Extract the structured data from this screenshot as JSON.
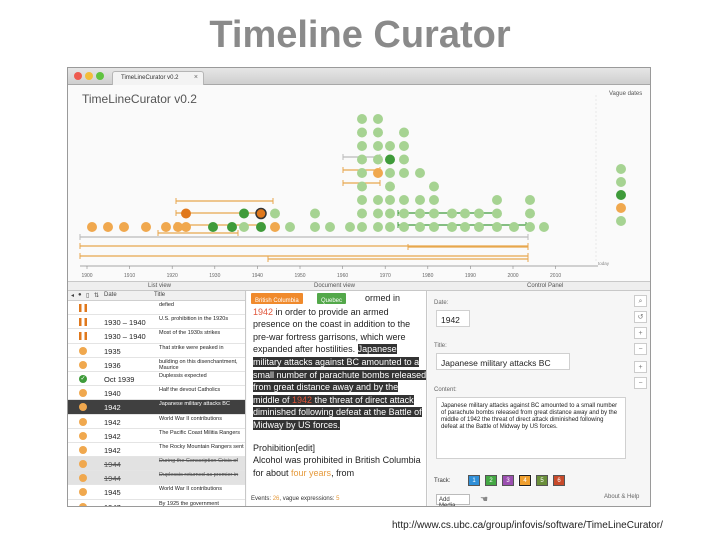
{
  "slide_title": "Timeline Curator",
  "url": "http://www.cs.ubc.ca/group/infovis/software/TimeLineCurator/",
  "window": {
    "tab_title": "TimeLineCurator v0.2",
    "tab_close": "×",
    "app_logo": "TimeLineCurator v0.2"
  },
  "timeline": {
    "vague_dates_label": "Vague dates",
    "axis_ticks": [
      "1900",
      "1910",
      "1920",
      "1930",
      "1940",
      "1950",
      "1960",
      "1970",
      "1980",
      "1990",
      "2000",
      "2010"
    ],
    "axis_end_label": "today",
    "colors": {
      "light_green": "#a6d392",
      "green": "#3f9b3a",
      "orange": "#f0a84e",
      "dark_orange": "#e0781c",
      "bar": "#e8a74d",
      "gray_bar": "#bbbbbb"
    }
  },
  "panel_headers": {
    "list": "List view",
    "document": "Document view",
    "control": "Control Panel"
  },
  "list_view": {
    "toolbar": {
      "date_col": "Date",
      "title_col": "Title"
    },
    "rows": [
      {
        "date": "",
        "title": "defied",
        "icon": "bowtie",
        "style": ""
      },
      {
        "date": "1930 – 1940",
        "title": "U.S. prohibition in the 1920s",
        "icon": "bowtie",
        "style": ""
      },
      {
        "date": "1930 – 1940",
        "title": "Most of the 1930s strikes",
        "icon": "bowtie",
        "style": ""
      },
      {
        "date": "1935",
        "title": "That strike were peaked in",
        "icon": "orange",
        "style": ""
      },
      {
        "date": "1936",
        "title": "building on this disenchantment, Maurice",
        "icon": "orange",
        "style": ""
      },
      {
        "date": "Oct 1939",
        "title": "Duplessis expected",
        "icon": "check",
        "style": ""
      },
      {
        "date": "1940",
        "title": "Half the devout Catholics",
        "icon": "orange",
        "style": ""
      },
      {
        "date": "1942",
        "title": "Japanese military attacks BC",
        "icon": "orange",
        "style": "sel"
      },
      {
        "date": "1942",
        "title": "World War II contributions",
        "icon": "orange",
        "style": ""
      },
      {
        "date": "1942",
        "title": "The Pacific Coast Militia Rangers",
        "icon": "orange",
        "style": ""
      },
      {
        "date": "1942",
        "title": "The Rocky Mountain Rangers sent",
        "icon": "orange",
        "style": ""
      },
      {
        "date": "1944",
        "title": "During the Conscription Crisis of",
        "icon": "orange",
        "style": "gray strike"
      },
      {
        "date": "1944",
        "title": "Duplessis returned as premier in",
        "icon": "orange",
        "style": "gray strike"
      },
      {
        "date": "1945",
        "title": "World War II contributions",
        "icon": "orange",
        "style": ""
      },
      {
        "date": "1947",
        "title": "By 1925 the government",
        "icon": "orange",
        "style": ""
      }
    ]
  },
  "document_view": {
    "tag_british": "British Columbia",
    "tag_quebec": "Quebec",
    "line1_after": "ormed in",
    "p1_a": "1942",
    "p1_b": " in order to provide an armed presence on the coast in addition to the pre-war fortress garrisons, which were expanded after hostilities. ",
    "p1_hl1": "Japanese military attacks against BC amounted to a small number of parachute bombs released from great distance away and by the middle of ",
    "p1_hl_year": "1942",
    "p1_hl2": " the threat of direct attack diminished following defeat at the Battle of Midway by US forces.",
    "p2_head": "Prohibition[edit]",
    "p2_text": "Alcohol was prohibited in British Columbia for about ",
    "p2_emph": "four years",
    "p2_end": ", from",
    "status_events": "Events: ",
    "status_events_n": "26",
    "status_vague": ", vague expressions: ",
    "status_vague_n": "5"
  },
  "control_panel": {
    "date_label": "Date:",
    "date_value": "1942",
    "title_label": "Title:",
    "title_value": "Japanese military attacks BC",
    "content_label": "Content:",
    "content_value": "Japanese military attacks against BC amounted to a small number of parachute bombs released from great distance away and by the middle of 1942 the threat of direct attack diminished following defeat at the Battle of Midway by US forces.",
    "track_label": "Track:",
    "tracks": [
      {
        "n": "1",
        "color": "#2f8fd8"
      },
      {
        "n": "2",
        "color": "#44a844"
      },
      {
        "n": "3",
        "color": "#9b4fb0"
      },
      {
        "n": "4",
        "color": "#f0a030"
      },
      {
        "n": "5",
        "color": "#6a8f3a"
      },
      {
        "n": "6",
        "color": "#c84a2a"
      }
    ],
    "add_media": "Add Media",
    "about_help": "About & Help",
    "side_buttons": [
      "⌕",
      "↺",
      "+",
      "−",
      "+",
      "−"
    ]
  }
}
